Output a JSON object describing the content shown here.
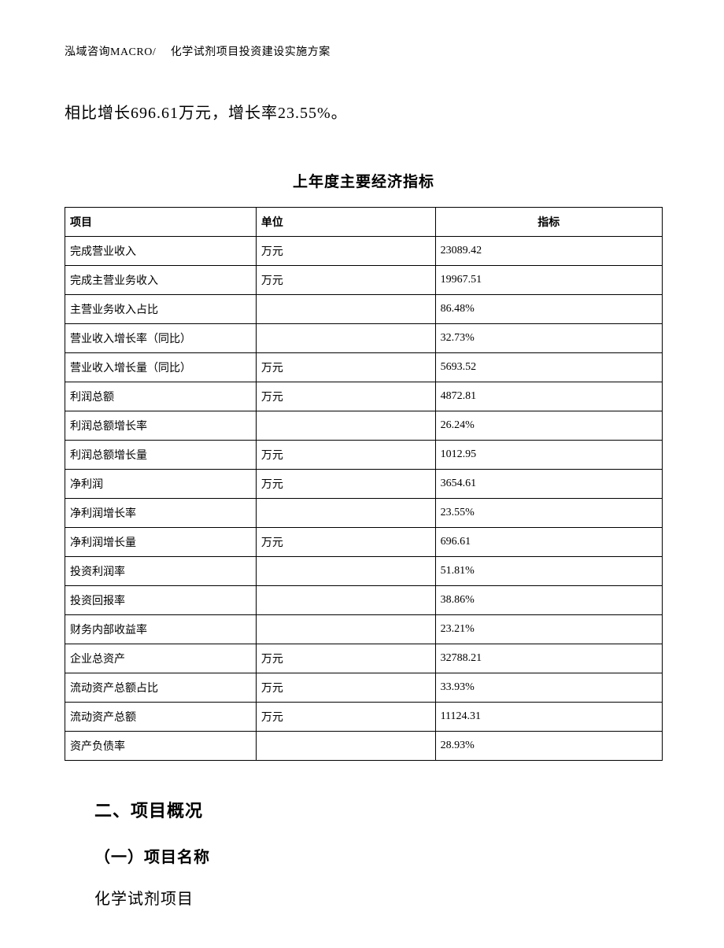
{
  "header": "泓域咨询MACRO/　 化学试剂项目投资建设实施方案",
  "body_text": "相比增长696.61万元，增长率23.55%。",
  "table": {
    "title": "上年度主要经济指标",
    "columns": [
      "项目",
      "单位",
      "指标"
    ],
    "rows": [
      [
        "完成营业收入",
        "万元",
        "23089.42"
      ],
      [
        "完成主营业务收入",
        "万元",
        "19967.51"
      ],
      [
        "主营业务收入占比",
        "",
        "86.48%"
      ],
      [
        "营业收入增长率（同比）",
        "",
        "32.73%"
      ],
      [
        "营业收入增长量（同比）",
        "万元",
        "5693.52"
      ],
      [
        "利润总额",
        "万元",
        "4872.81"
      ],
      [
        "利润总额增长率",
        "",
        "26.24%"
      ],
      [
        "利润总额增长量",
        "万元",
        "1012.95"
      ],
      [
        "净利润",
        "万元",
        "3654.61"
      ],
      [
        "净利润增长率",
        "",
        "23.55%"
      ],
      [
        "净利润增长量",
        "万元",
        "696.61"
      ],
      [
        "投资利润率",
        "",
        "51.81%"
      ],
      [
        "投资回报率",
        "",
        "38.86%"
      ],
      [
        "财务内部收益率",
        "",
        "23.21%"
      ],
      [
        "企业总资产",
        "万元",
        "32788.21"
      ],
      [
        "流动资产总额占比",
        "万元",
        "33.93%"
      ],
      [
        "流动资产总额",
        "万元",
        "11124.31"
      ],
      [
        "资产负债率",
        "",
        "28.93%"
      ]
    ]
  },
  "sections": {
    "heading": "二、项目概况",
    "sub_heading": "（一）项目名称",
    "sub_content": "化学试剂项目"
  },
  "style": {
    "page_bg": "#ffffff",
    "text_color": "#000000",
    "border_color": "#000000",
    "body_font_size_pt": 20,
    "header_font_size_pt": 14,
    "table_font_size_pt": 14,
    "heading_font_size_pt": 22
  }
}
